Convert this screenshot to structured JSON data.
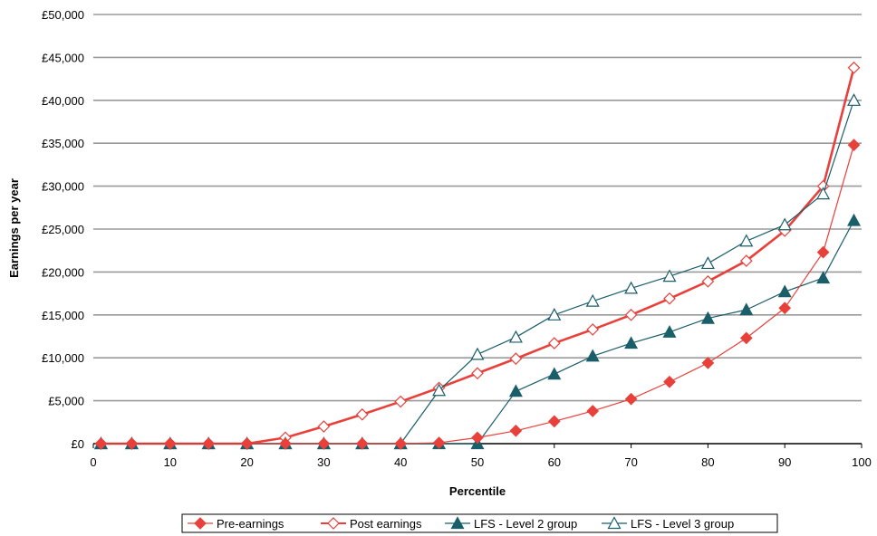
{
  "chart_data": {
    "type": "line",
    "title": "",
    "xlabel": "Percentile",
    "ylabel": "Earnings per year",
    "xlim": [
      0,
      100
    ],
    "ylim": [
      0,
      50000
    ],
    "x_ticks": [
      0,
      10,
      20,
      30,
      40,
      50,
      60,
      70,
      80,
      90,
      100
    ],
    "y_ticks": [
      0,
      5000,
      10000,
      15000,
      20000,
      25000,
      30000,
      35000,
      40000,
      45000,
      50000
    ],
    "y_tick_labels": [
      "£0",
      "£5,000",
      "£10,000",
      "£15,000",
      "£20,000",
      "£25,000",
      "£30,000",
      "£35,000",
      "£40,000",
      "£45,000",
      "£50,000"
    ],
    "grid": "horizontal",
    "legend_position": "bottom",
    "series": [
      {
        "name": "Pre-earnings",
        "color": "#e8403a",
        "marker": "diamond-filled",
        "x": [
          1,
          5,
          10,
          15,
          20,
          25,
          30,
          35,
          40,
          45,
          50,
          55,
          60,
          65,
          70,
          75,
          80,
          85,
          90,
          95,
          99
        ],
        "y": [
          0,
          0,
          0,
          0,
          0,
          0,
          0,
          0,
          0,
          100,
          700,
          1500,
          2600,
          3800,
          5200,
          7200,
          9400,
          12300,
          15800,
          22300,
          34800
        ]
      },
      {
        "name": "Post earnings",
        "color": "#e8403a",
        "marker": "diamond-open",
        "x": [
          1,
          5,
          10,
          15,
          20,
          25,
          30,
          35,
          40,
          45,
          50,
          55,
          60,
          65,
          70,
          75,
          80,
          85,
          90,
          95,
          99
        ],
        "y": [
          0,
          0,
          0,
          0,
          0,
          700,
          2000,
          3400,
          4900,
          6500,
          8200,
          9900,
          11700,
          13300,
          15000,
          16900,
          18900,
          21300,
          24800,
          30000,
          43800
        ]
      },
      {
        "name": "LFS - Level 2 group",
        "color": "#1a5e6a",
        "marker": "triangle-filled",
        "x": [
          1,
          5,
          10,
          15,
          20,
          25,
          30,
          35,
          40,
          45,
          50,
          55,
          60,
          65,
          70,
          75,
          80,
          85,
          90,
          95,
          99
        ],
        "y": [
          0,
          0,
          0,
          0,
          0,
          0,
          0,
          0,
          0,
          0,
          0,
          6100,
          8100,
          10200,
          11700,
          13000,
          14600,
          15600,
          17700,
          19300,
          26000
        ]
      },
      {
        "name": "LFS - Level 3 group",
        "color": "#1a5e6a",
        "marker": "triangle-open",
        "x": [
          1,
          5,
          10,
          15,
          20,
          25,
          30,
          35,
          40,
          45,
          50,
          55,
          60,
          65,
          70,
          75,
          80,
          85,
          90,
          95,
          99
        ],
        "y": [
          0,
          0,
          0,
          0,
          0,
          0,
          0,
          0,
          0,
          6200,
          10400,
          12400,
          15000,
          16600,
          18100,
          19500,
          21000,
          23600,
          25500,
          29100,
          40000
        ]
      }
    ]
  }
}
